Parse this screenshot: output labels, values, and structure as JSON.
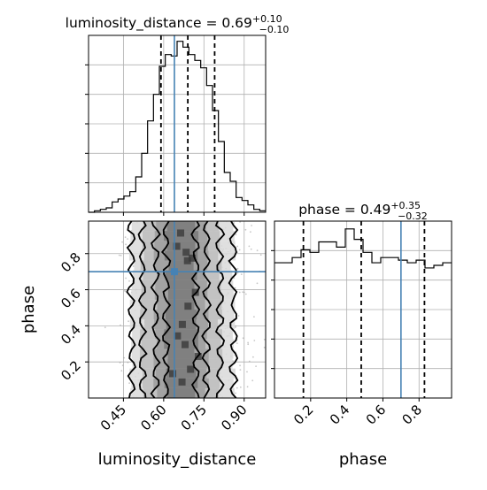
{
  "chart_data": [
    {
      "type": "histogram",
      "panel": "top-left",
      "title_param": "luminosity_distance",
      "title_median": "0.69",
      "title_err_plus": "+0.10",
      "title_err_minus": "−0.10",
      "xlim": [
        0.32,
        0.98
      ],
      "bin_edges": [
        0.32,
        0.342,
        0.364,
        0.386,
        0.408,
        0.43,
        0.452,
        0.474,
        0.496,
        0.518,
        0.54,
        0.562,
        0.584,
        0.606,
        0.628,
        0.65,
        0.672,
        0.694,
        0.716,
        0.738,
        0.76,
        0.782,
        0.804,
        0.826,
        0.848,
        0.87,
        0.892,
        0.914,
        0.936,
        0.958,
        0.98
      ],
      "counts": [
        0,
        1,
        2,
        3,
        7,
        9,
        11,
        14,
        24,
        40,
        62,
        80,
        99,
        107,
        106,
        116,
        112,
        107,
        103,
        98,
        86,
        69,
        48,
        27,
        21,
        10,
        8,
        5,
        2,
        1
      ],
      "ylim": [
        0,
        120
      ],
      "quantile_lines": [
        0.59,
        0.69,
        0.79
      ],
      "truth": 0.64,
      "grid": true
    },
    {
      "type": "histogram",
      "panel": "bottom-right",
      "title_param": "phase",
      "title_median": "0.49",
      "title_err_plus": "+0.35",
      "title_err_minus": "−0.32",
      "xlabel": "phase",
      "xlim": [
        0.0,
        0.98
      ],
      "x_ticks": [
        "0.2",
        "0.4",
        "0.6",
        "0.8"
      ],
      "x_tick_values": [
        0.2,
        0.4,
        0.6,
        0.8
      ],
      "bin_edges": [
        0.0,
        0.049,
        0.098,
        0.147,
        0.196,
        0.245,
        0.294,
        0.343,
        0.392,
        0.441,
        0.49,
        0.539,
        0.588,
        0.637,
        0.686,
        0.735,
        0.784,
        0.833,
        0.882,
        0.931,
        0.98
      ],
      "counts": [
        52,
        52,
        54,
        57,
        56,
        60,
        60,
        58,
        65,
        61,
        56,
        52,
        54,
        54,
        53,
        52,
        53,
        50,
        51,
        52
      ],
      "ylim": [
        0,
        68
      ],
      "quantile_lines": [
        0.16,
        0.48,
        0.83
      ],
      "truth": 0.7,
      "grid": true
    },
    {
      "type": "scatter",
      "panel": "bottom-left",
      "description": "2D posterior density with contour levels",
      "xlabel": "luminosity_distance",
      "ylabel": "phase",
      "xlim": [
        0.32,
        0.98
      ],
      "ylim": [
        0.0,
        0.98
      ],
      "x_ticks": [
        "0.45",
        "0.60",
        "0.75",
        "0.90"
      ],
      "x_tick_values": [
        0.45,
        0.6,
        0.75,
        0.9
      ],
      "y_ticks": [
        "0.2",
        "0.4",
        "0.6",
        "0.8"
      ],
      "y_tick_values": [
        0.2,
        0.4,
        0.6,
        0.8
      ],
      "truth": [
        0.64,
        0.7
      ],
      "contour_intervals": [
        [
          0.48,
          0.86
        ],
        [
          0.52,
          0.81
        ],
        [
          0.57,
          0.76
        ],
        [
          0.61,
          0.72
        ]
      ],
      "grid": true
    }
  ]
}
